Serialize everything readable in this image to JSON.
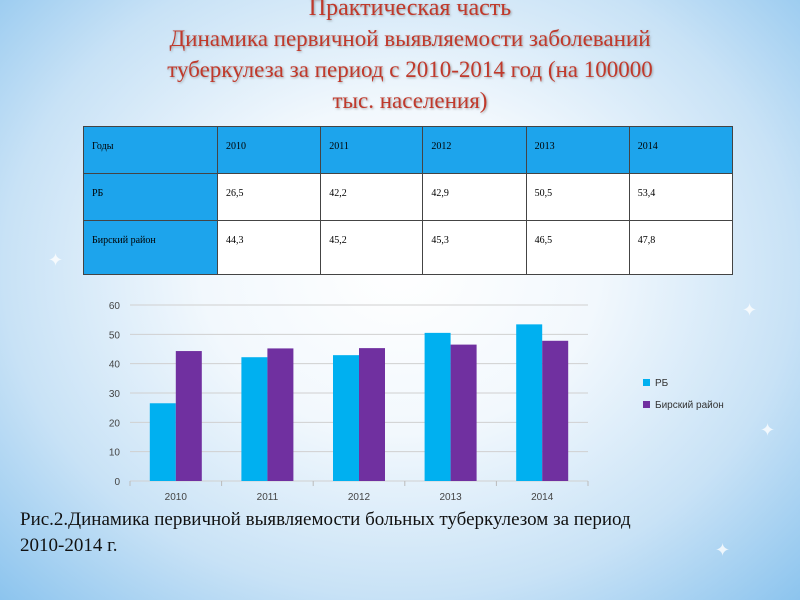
{
  "title": {
    "line1": "Практическая часть",
    "line2": "Динамика  первичной  выявляемости  заболеваний",
    "line3": "туберкулеза  за период с 2010-2014 год (на 100000",
    "line4": "тыс. населения)"
  },
  "table": {
    "header": [
      "Годы",
      "2010",
      "2011",
      "2012",
      "2013",
      "2014"
    ],
    "rows": [
      [
        "РБ",
        "26,5",
        "42,2",
        "42,9",
        "50,5",
        "53,4"
      ],
      [
        "Бирский район",
        "44,3",
        "45,2",
        "45,3",
        "46,5",
        "47,8"
      ]
    ]
  },
  "chart_data": {
    "type": "bar",
    "categories": [
      "2010",
      "2011",
      "2012",
      "2013",
      "2014"
    ],
    "series": [
      {
        "name": "РБ",
        "values": [
          26.5,
          42.2,
          42.9,
          50.5,
          53.4
        ],
        "color": "#00b0f0"
      },
      {
        "name": "Бирский район",
        "values": [
          44.3,
          45.2,
          45.3,
          46.5,
          47.8
        ],
        "color": "#7030a0"
      }
    ],
    "ylim": [
      0,
      60
    ],
    "yticks": [
      0,
      10,
      20,
      30,
      40,
      50,
      60
    ],
    "grid": true,
    "legend": "right"
  },
  "caption": {
    "line1": "Рис.2.Динамика первичной  выявляемости больных туберкулезом за период",
    "line2": "2010-2014 г."
  },
  "colors": {
    "title": "#c0392b",
    "table_accent": "#1da4ec"
  }
}
